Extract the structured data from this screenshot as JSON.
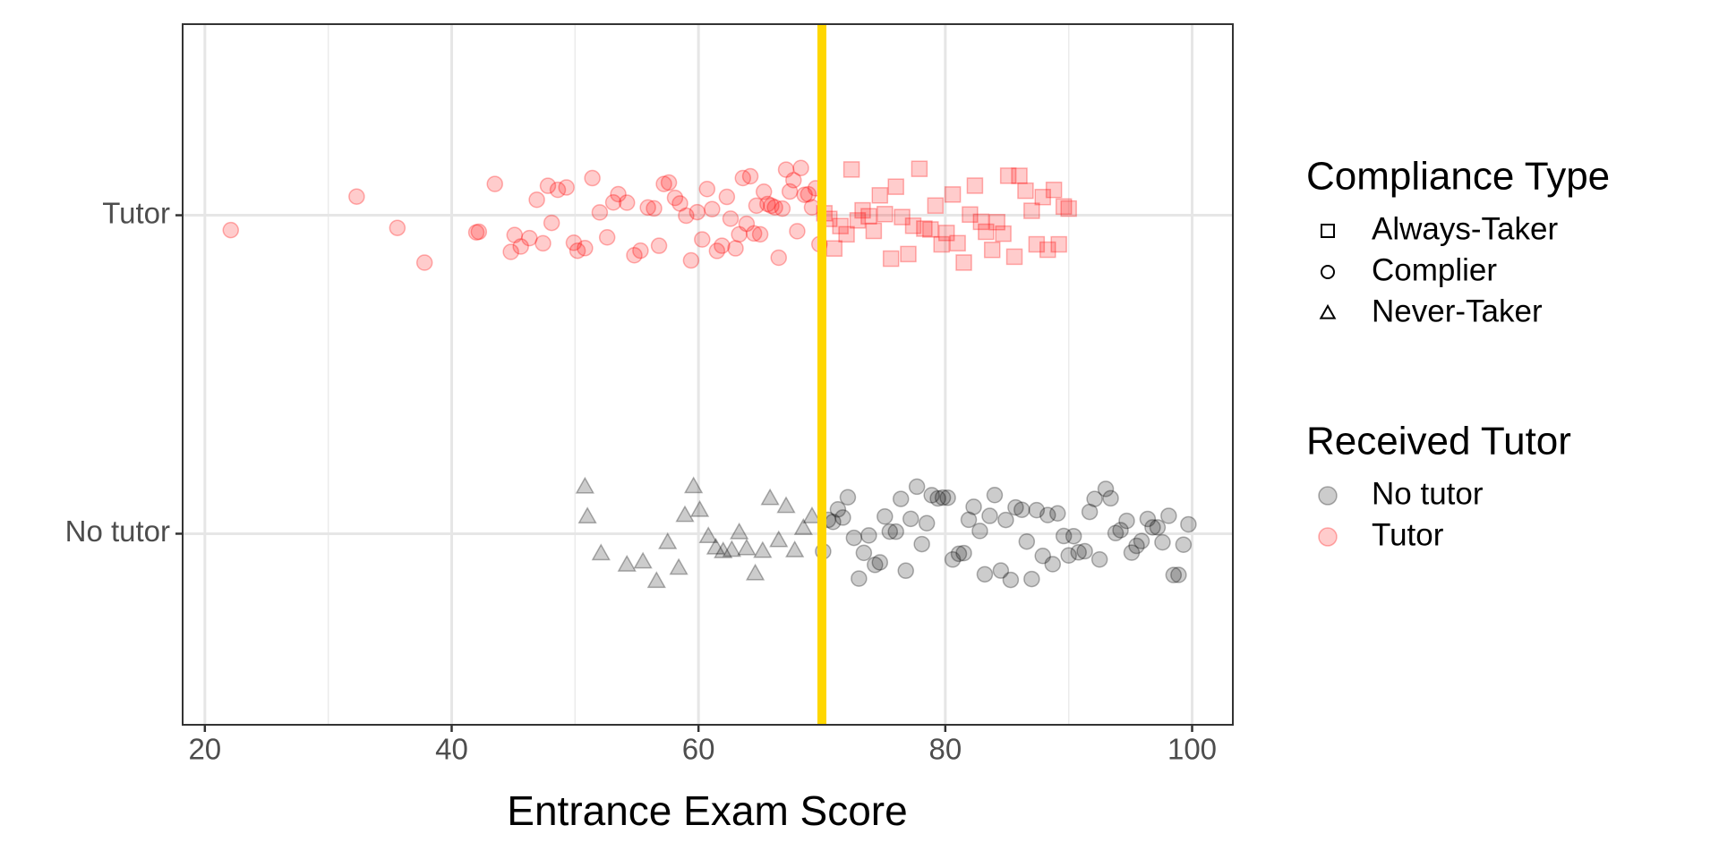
{
  "chart_data": {
    "type": "scatter",
    "x_label": "Entrance Exam Score",
    "xlim": [
      18.2,
      103.3
    ],
    "xticks": [
      20,
      40,
      60,
      80,
      100
    ],
    "x_minor_grid": [
      30,
      50,
      70,
      90
    ],
    "categories": [
      "Tutor",
      "No tutor"
    ],
    "grid": true,
    "vline": {
      "value": 70,
      "color": "#FFD700"
    },
    "legends": [
      {
        "title": "Compliance Type",
        "items": [
          {
            "label": "Always-Taker",
            "shape": "square"
          },
          {
            "label": "Complier",
            "shape": "circle"
          },
          {
            "label": "Never-Taker",
            "shape": "triangle"
          }
        ]
      },
      {
        "title": "Received Tutor",
        "items": [
          {
            "label": "No tutor",
            "color": "#000000"
          },
          {
            "label": "Tutor",
            "color": "#ff0000"
          }
        ]
      }
    ],
    "series": [
      {
        "category": 0,
        "shape": "circle",
        "color": "#ff0000",
        "values": [
          22.1,
          32.3,
          35.6,
          37.8,
          42.0,
          42.2,
          43.5,
          44.8,
          45.1,
          45.6,
          46.3,
          46.9,
          47.4,
          47.8,
          48.1,
          48.6,
          49.3,
          49.9,
          50.2,
          50.8,
          51.4,
          52.0,
          52.6,
          53.1,
          53.5,
          54.2,
          54.8,
          55.3,
          55.9,
          56.4,
          56.8,
          57.2,
          57.6,
          58.1,
          58.5,
          59.0,
          59.4,
          59.9,
          60.3,
          60.7,
          61.1,
          61.5,
          61.9,
          62.3,
          62.6,
          63.0,
          63.3,
          63.6,
          63.9,
          64.2,
          64.5,
          64.7,
          65.0,
          65.3,
          65.6,
          65.9,
          66.2,
          66.5,
          66.8,
          67.1,
          67.4,
          67.7,
          68.0,
          68.3,
          68.6,
          68.9,
          69.2,
          69.5,
          69.8
        ]
      },
      {
        "category": 0,
        "shape": "square",
        "color": "#ff0000",
        "values": [
          70.2,
          70.6,
          71.0,
          71.5,
          72.0,
          72.4,
          72.9,
          73.3,
          73.8,
          74.2,
          74.7,
          75.1,
          75.6,
          76.0,
          76.5,
          77.0,
          77.4,
          77.9,
          78.3,
          78.8,
          79.2,
          79.7,
          80.1,
          80.6,
          81.0,
          81.5,
          82.0,
          82.4,
          82.9,
          83.3,
          83.8,
          84.2,
          84.7,
          85.1,
          85.6,
          86.0,
          86.5,
          87.0,
          87.4,
          87.9,
          88.3,
          88.8,
          89.2,
          89.6,
          90.0
        ]
      },
      {
        "category": 1,
        "shape": "triangle",
        "color": "#000000",
        "values": [
          50.8,
          51.0,
          52.1,
          54.2,
          55.5,
          56.6,
          57.5,
          58.4,
          58.9,
          59.6,
          60.1,
          60.8,
          61.4,
          62.0,
          62.7,
          63.3,
          63.9,
          64.6,
          65.2,
          65.8,
          66.5,
          67.1,
          67.8,
          68.5,
          69.2
        ]
      },
      {
        "category": 1,
        "shape": "circle",
        "color": "#000000",
        "values": [
          70.1,
          70.5,
          70.9,
          71.3,
          71.7,
          72.1,
          72.6,
          73.0,
          73.4,
          73.8,
          74.3,
          74.7,
          75.1,
          75.5,
          76.0,
          76.4,
          76.8,
          77.2,
          77.7,
          78.1,
          78.5,
          78.9,
          79.4,
          79.8,
          80.2,
          80.6,
          81.1,
          81.5,
          81.9,
          82.3,
          82.8,
          83.2,
          83.6,
          84.0,
          84.5,
          84.9,
          85.3,
          85.7,
          86.2,
          86.6,
          87.0,
          87.4,
          87.9,
          88.3,
          88.7,
          89.1,
          89.6,
          90.0,
          90.4,
          90.8,
          91.3,
          91.7,
          92.1,
          92.5,
          93.0,
          93.4,
          93.8,
          94.2,
          94.7,
          95.1,
          95.5,
          95.9,
          96.4,
          96.8,
          97.2,
          97.6,
          98.1,
          98.5,
          98.9,
          99.3,
          99.7
        ]
      }
    ]
  }
}
